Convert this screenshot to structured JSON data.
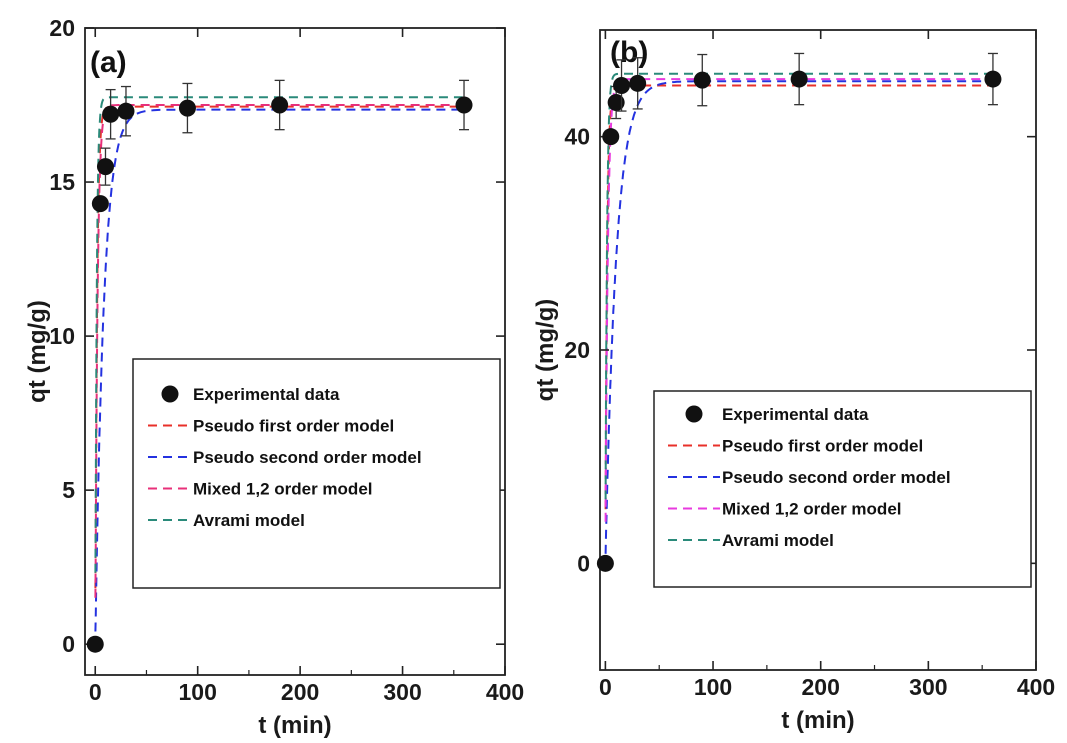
{
  "chart_data": [
    {
      "type": "scatter",
      "panel_label": "(a)",
      "xlabel": "t (min)",
      "ylabel": "qt (mg/g)",
      "xlim": [
        -10,
        400
      ],
      "ylim": [
        -1,
        20
      ],
      "xticks": [
        0,
        100,
        200,
        300,
        400
      ],
      "yticks": [
        0,
        5,
        10,
        15,
        20
      ],
      "legend_position": "center-bottom",
      "experimental": {
        "name": "Experimental data",
        "x": [
          0,
          5,
          10,
          15,
          30,
          90,
          180,
          360
        ],
        "y": [
          0,
          14.3,
          15.5,
          17.2,
          17.3,
          17.4,
          17.5,
          17.5
        ],
        "err": [
          0,
          0,
          0.6,
          0.8,
          0.8,
          0.8,
          0.8,
          0.8
        ]
      },
      "models": [
        {
          "name": "Pseudo first order model",
          "color": "#e8302a",
          "qe": 17.45,
          "k": 0.55
        },
        {
          "name": "Pseudo second order model",
          "color": "#2432e0",
          "qe": 17.35,
          "k": 0.12
        },
        {
          "name": "Mixed 1,2 order model",
          "color": "#e8307a",
          "qe": 17.5,
          "k": 0.45
        },
        {
          "name": "Avrami model",
          "color": "#2a8a7a",
          "qe": 17.75,
          "k": 0.7
        }
      ]
    },
    {
      "type": "scatter",
      "panel_label": "(b)",
      "xlabel": "t (min)",
      "ylabel": "qt (mg/g)",
      "xlim": [
        -5,
        400
      ],
      "ylim": [
        -10,
        50
      ],
      "xticks": [
        0,
        100,
        200,
        300,
        400
      ],
      "yticks": [
        0,
        20,
        40
      ],
      "legend_position": "center-bottom",
      "experimental": {
        "name": "Experimental data",
        "x": [
          0,
          5,
          10,
          15,
          30,
          90,
          180,
          360
        ],
        "y": [
          0,
          40,
          43.2,
          44.8,
          45,
          45.3,
          45.4,
          45.4
        ],
        "err": [
          0,
          0,
          1.5,
          2.4,
          2.4,
          2.4,
          2.4,
          2.4
        ]
      },
      "models": [
        {
          "name": "Pseudo first order model",
          "color": "#e8302a",
          "qe": 44.8,
          "k": 0.6
        },
        {
          "name": "Pseudo second order model",
          "color": "#2432e0",
          "qe": 45.2,
          "k": 0.1
        },
        {
          "name": "Mixed 1,2 order model",
          "color": "#e83adf",
          "qe": 45.4,
          "k": 0.45
        },
        {
          "name": "Avrami model",
          "color": "#2a8a7a",
          "qe": 45.9,
          "k": 0.7
        }
      ]
    }
  ]
}
